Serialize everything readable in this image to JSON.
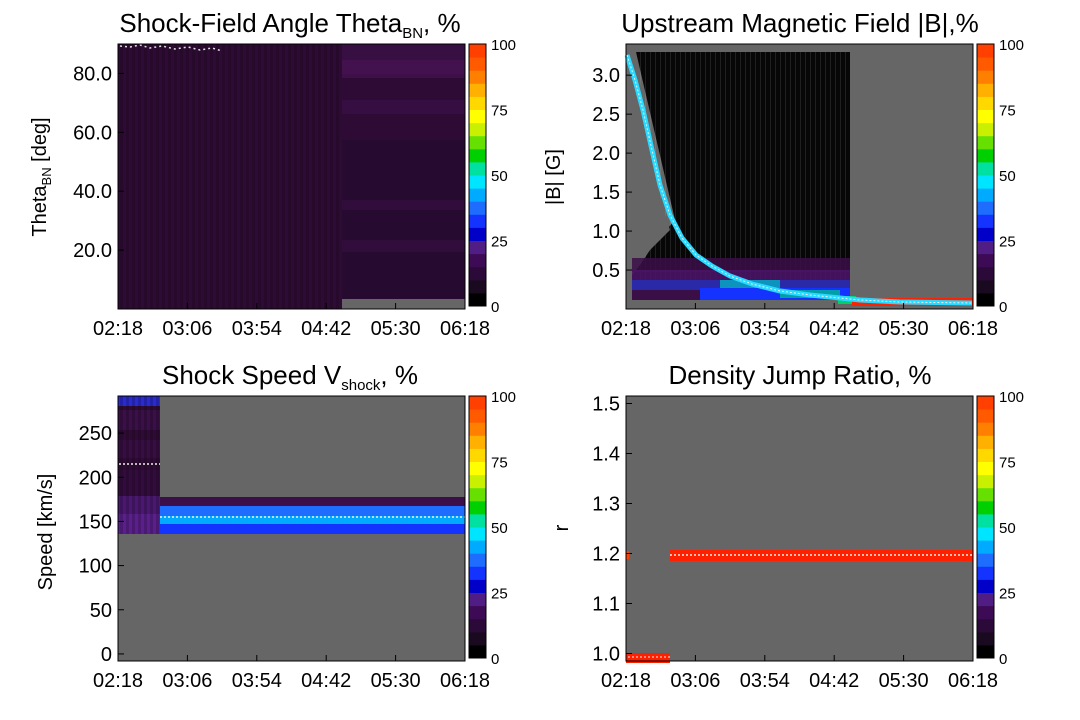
{
  "colorbar": {
    "ticks": [
      "0",
      "25",
      "50",
      "75",
      "100"
    ],
    "colors": [
      "#000000",
      "#1a0a1f",
      "#2b0a3a",
      "#3d0a55",
      "#4f1d84",
      "#0000c8",
      "#1533ff",
      "#1e6dff",
      "#00aaff",
      "#00e5ff",
      "#00e0a0",
      "#00d000",
      "#66e000",
      "#c8f000",
      "#ffff00",
      "#ffd800",
      "#ffb000",
      "#ff8000",
      "#ff5a00",
      "#ff4000"
    ]
  },
  "chart_data": [
    {
      "type": "heatmap",
      "title_main": "Shock-Field Angle Theta",
      "title_sub": "BN",
      "title_tail": ", %",
      "ylabel_main": "Theta",
      "ylabel_sub": "BN",
      "ylabel_tail": " [deg]",
      "x_ticks": [
        "02:18",
        "03:06",
        "03:54",
        "04:42",
        "05:30",
        "06:18"
      ],
      "y_ticks": [
        {
          "v": 20,
          "label": "20.0"
        },
        {
          "v": 40,
          "label": "40.0"
        },
        {
          "v": 60,
          "label": "60.0"
        },
        {
          "v": 80,
          "label": "80.0"
        }
      ],
      "ylim": [
        0,
        90
      ],
      "xlim_hours": [
        2.3,
        6.3
      ]
    },
    {
      "type": "heatmap",
      "title_main": "Upstream Magnetic Field |B|,%",
      "title_sub": "",
      "title_tail": "",
      "ylabel_main": "|B| [G]",
      "ylabel_sub": "",
      "ylabel_tail": "",
      "x_ticks": [
        "02:18",
        "03:06",
        "03:54",
        "04:42",
        "05:30",
        "06:18"
      ],
      "y_ticks": [
        {
          "v": 0.5,
          "label": "0.5"
        },
        {
          "v": 1.0,
          "label": "1.0"
        },
        {
          "v": 1.5,
          "label": "1.5"
        },
        {
          "v": 2.0,
          "label": "2.0"
        },
        {
          "v": 2.5,
          "label": "2.5"
        },
        {
          "v": 3.0,
          "label": "3.0"
        }
      ],
      "ylim": [
        0,
        3.4
      ],
      "xlim_hours": [
        2.3,
        6.3
      ]
    },
    {
      "type": "heatmap",
      "title_main": "Shock Speed V",
      "title_sub": "shock",
      "title_tail": ", %",
      "ylabel_main": "Speed [km/s]",
      "ylabel_sub": "",
      "ylabel_tail": "",
      "x_ticks": [
        "02:18",
        "03:06",
        "03:54",
        "04:42",
        "05:30",
        "06:18"
      ],
      "y_ticks": [
        {
          "v": 0,
          "label": "0"
        },
        {
          "v": 50,
          "label": "50"
        },
        {
          "v": 100,
          "label": "100"
        },
        {
          "v": 150,
          "label": "150"
        },
        {
          "v": 200,
          "label": "200"
        },
        {
          "v": 250,
          "label": "250"
        }
      ],
      "ylim": [
        -8,
        292
      ],
      "xlim_hours": [
        2.3,
        6.3
      ]
    },
    {
      "type": "heatmap",
      "title_main": "Density Jump Ratio, %",
      "title_sub": "",
      "title_tail": "",
      "ylabel_main": "r",
      "ylabel_sub": "",
      "ylabel_tail": "",
      "x_ticks": [
        "02:18",
        "03:06",
        "03:54",
        "04:42",
        "05:30",
        "06:18"
      ],
      "y_ticks": [
        {
          "v": 1.0,
          "label": "1.0"
        },
        {
          "v": 1.1,
          "label": "1.1"
        },
        {
          "v": 1.2,
          "label": "1.2"
        },
        {
          "v": 1.3,
          "label": "1.3"
        },
        {
          "v": 1.4,
          "label": "1.4"
        },
        {
          "v": 1.5,
          "label": "1.5"
        }
      ],
      "ylim": [
        0.985,
        1.515
      ],
      "xlim_hours": [
        2.3,
        6.3
      ]
    }
  ]
}
